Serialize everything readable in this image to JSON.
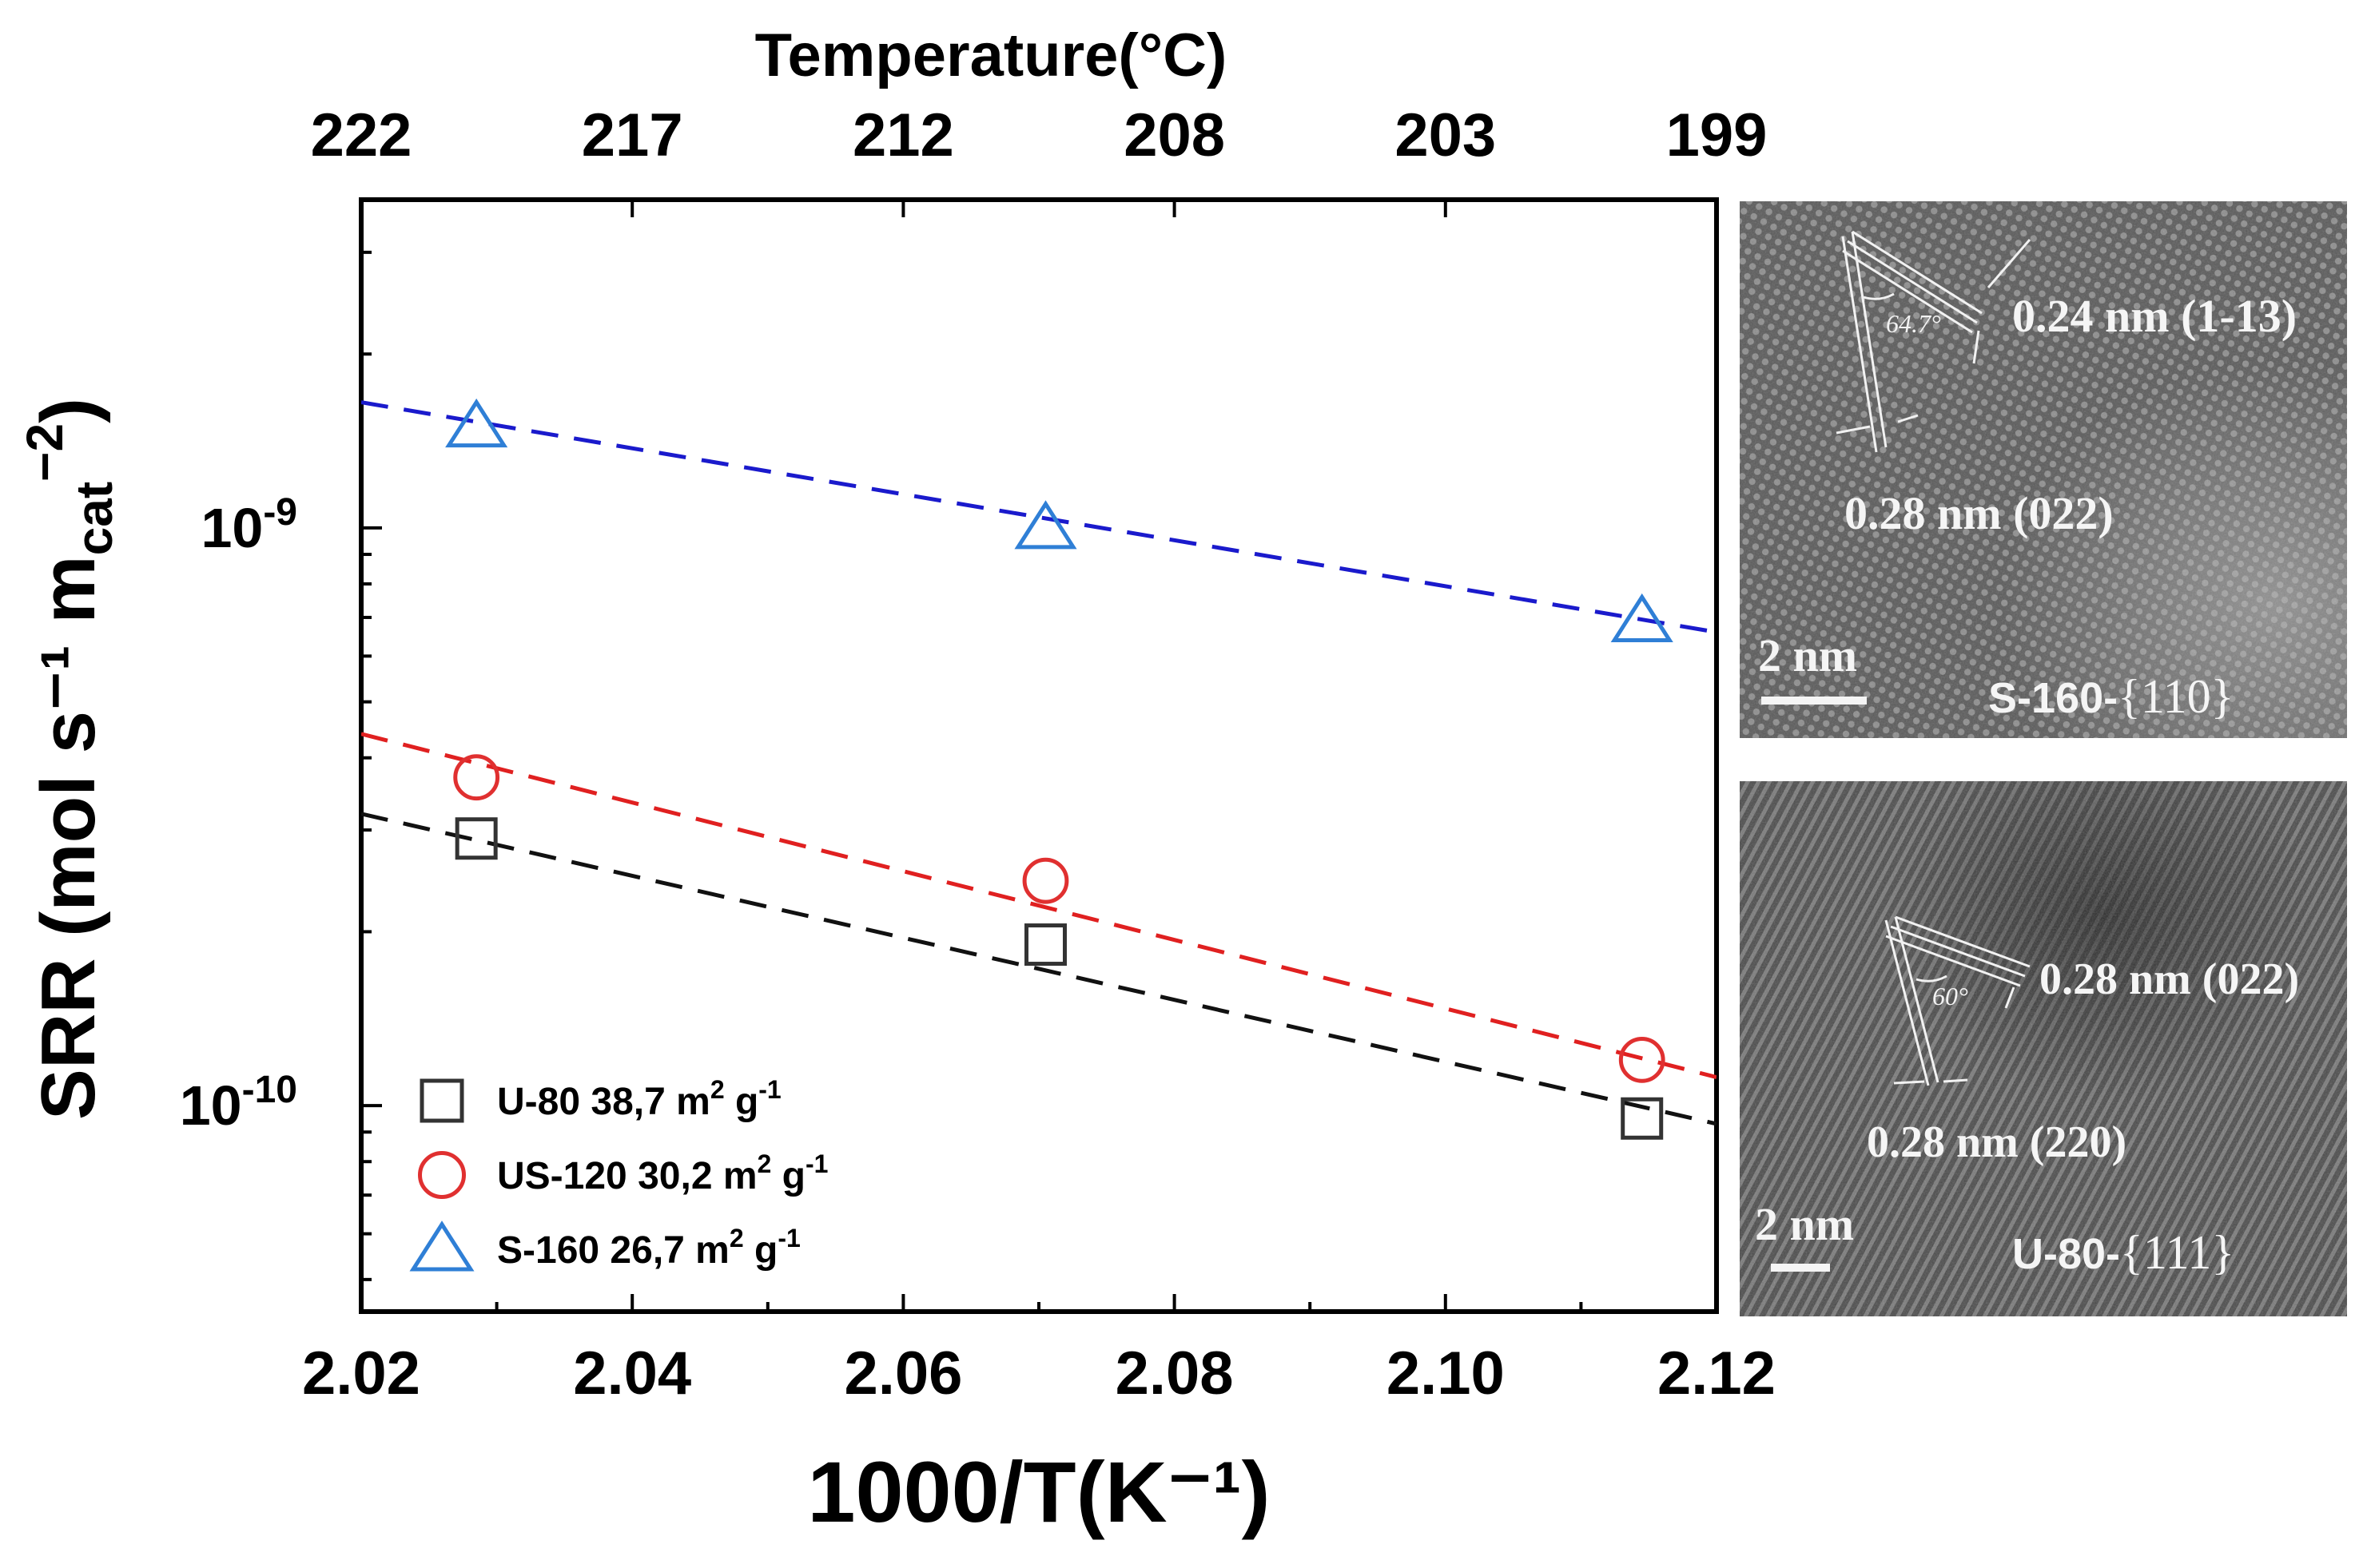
{
  "chart_data": {
    "type": "scatter",
    "title": "",
    "xlabel": "1000/T(K⁻¹)",
    "ylabel": "SRR (mol s⁻¹ m",
    "ylabel_sub": "cat",
    "ylabel_sup": "−2",
    "ylabel_close": ")",
    "xlim": [
      2.02,
      2.12
    ],
    "ylim": [
      4.4e-11,
      3.7e-09
    ],
    "yscale": "log",
    "xticks": [
      "2.02",
      "2.04",
      "2.06",
      "2.08",
      "2.10",
      "2.12"
    ],
    "xtick_values": [
      2.02,
      2.04,
      2.06,
      2.08,
      2.1,
      2.12
    ],
    "yticks": [
      {
        "value": 1e-09,
        "base": "10",
        "exp": "-9"
      },
      {
        "value": 1e-10,
        "base": "10",
        "exp": "-10"
      }
    ],
    "top_axis": {
      "label": "Temperature(°C)",
      "ticks": [
        "222",
        "217",
        "212",
        "208",
        "203",
        "199"
      ]
    },
    "legend_position": "bottom-left",
    "series": [
      {
        "name": "U-80 38,7 m² g⁻¹",
        "label": "U-80 38,7 m",
        "unit_sup": "2",
        "unit_g": " g",
        "unit_g_sup": "-1",
        "marker": "square",
        "color": "#333333",
        "fit_color": "#111111",
        "x": [
          2.0285,
          2.0705,
          2.1145
        ],
        "y": [
          2.9e-10,
          1.9e-10,
          9.5e-11
        ],
        "fit": {
          "x": [
            2.02,
            2.12
          ],
          "y": [
            3.2e-10,
            9.3e-11
          ]
        }
      },
      {
        "name": "US-120 30,2 m² g⁻¹",
        "label": "US-120 30,2 m",
        "unit_sup": "2",
        "unit_g": " g",
        "unit_g_sup": "-1",
        "marker": "circle",
        "color": "#e03030",
        "fit_color": "#e02020",
        "x": [
          2.0285,
          2.0705,
          2.1145
        ],
        "y": [
          3.7e-10,
          2.45e-10,
          1.2e-10
        ],
        "fit": {
          "x": [
            2.02,
            2.12
          ],
          "y": [
            4.4e-10,
            1.12e-10
          ]
        }
      },
      {
        "name": "S-160 26,7 m² g⁻¹",
        "label": "S-160 26,7 m",
        "unit_sup": "2",
        "unit_g": " g",
        "unit_g_sup": "-1",
        "marker": "triangle",
        "color": "#2f7fd6",
        "fit_color": "#1a1acc",
        "x": [
          2.0285,
          2.0705,
          2.1145
        ],
        "y": [
          1.5e-09,
          1e-09,
          6.9e-10
        ],
        "fit": {
          "x": [
            2.02,
            2.12
          ],
          "y": [
            1.65e-09,
            6.6e-10
          ]
        }
      }
    ]
  },
  "images": [
    {
      "label": "S-160-",
      "facet": "{110}",
      "scale": "2 nm",
      "annotations": [
        "0.24 nm (1-13)",
        "0.28 nm (022)",
        "64.7°"
      ]
    },
    {
      "label": "U-80-",
      "facet": "{111}",
      "scale": "2 nm",
      "annotations": [
        "0.28 nm (022)",
        "0.28 nm (220)",
        "60°"
      ]
    }
  ]
}
